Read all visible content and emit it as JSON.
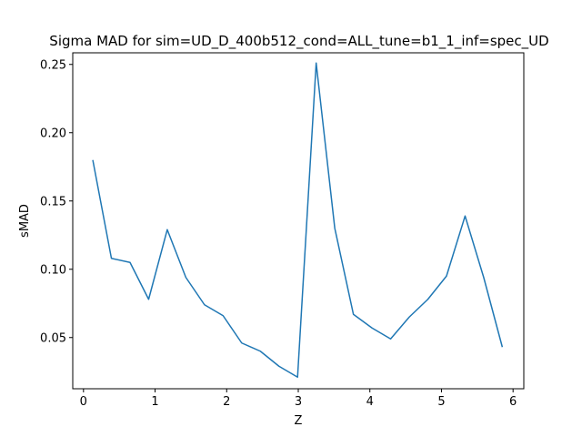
{
  "chart_data": {
    "type": "line",
    "title": "Sigma MAD for sim=UD_D_400b512_cond=ALL_tune=b1_1_inf=spec_UD",
    "xlabel": "Z",
    "ylabel": "sMAD",
    "xlim": [
      -0.15,
      6.15
    ],
    "ylim": [
      0.0125,
      0.2585
    ],
    "xticks": [
      0,
      1,
      2,
      3,
      4,
      5,
      6
    ],
    "xtick_labels": [
      "0",
      "1",
      "2",
      "3",
      "4",
      "5",
      "6"
    ],
    "yticks": [
      0.05,
      0.1,
      0.15,
      0.2,
      0.25
    ],
    "ytick_labels": [
      "0.05",
      "0.10",
      "0.15",
      "0.20",
      "0.25"
    ],
    "grid": false,
    "series": [
      {
        "color": "#1f77b4",
        "x": [
          0.13,
          0.39,
          0.65,
          0.91,
          1.17,
          1.43,
          1.69,
          1.95,
          2.21,
          2.47,
          2.73,
          2.99,
          3.25,
          3.51,
          3.77,
          4.03,
          4.29,
          4.55,
          4.81,
          5.07,
          5.33,
          5.59,
          5.85
        ],
        "y": [
          0.18,
          0.108,
          0.105,
          0.078,
          0.129,
          0.094,
          0.074,
          0.066,
          0.046,
          0.04,
          0.029,
          0.021,
          0.251,
          0.13,
          0.067,
          0.057,
          0.049,
          0.065,
          0.078,
          0.095,
          0.139,
          0.094,
          0.043
        ]
      }
    ]
  }
}
